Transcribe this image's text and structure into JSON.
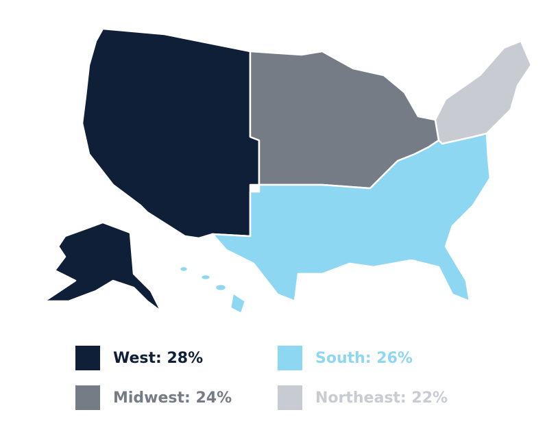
{
  "legend": [
    {
      "text": "West: 28%",
      "color": "#0f1f38"
    },
    {
      "text": "Midwest: 24%",
      "color": "#767c86"
    },
    {
      "text": "South: 26%",
      "color": "#8ed7f2"
    },
    {
      "text": "Northeast: 22%",
      "color": "#c8cbd1"
    }
  ]
}
